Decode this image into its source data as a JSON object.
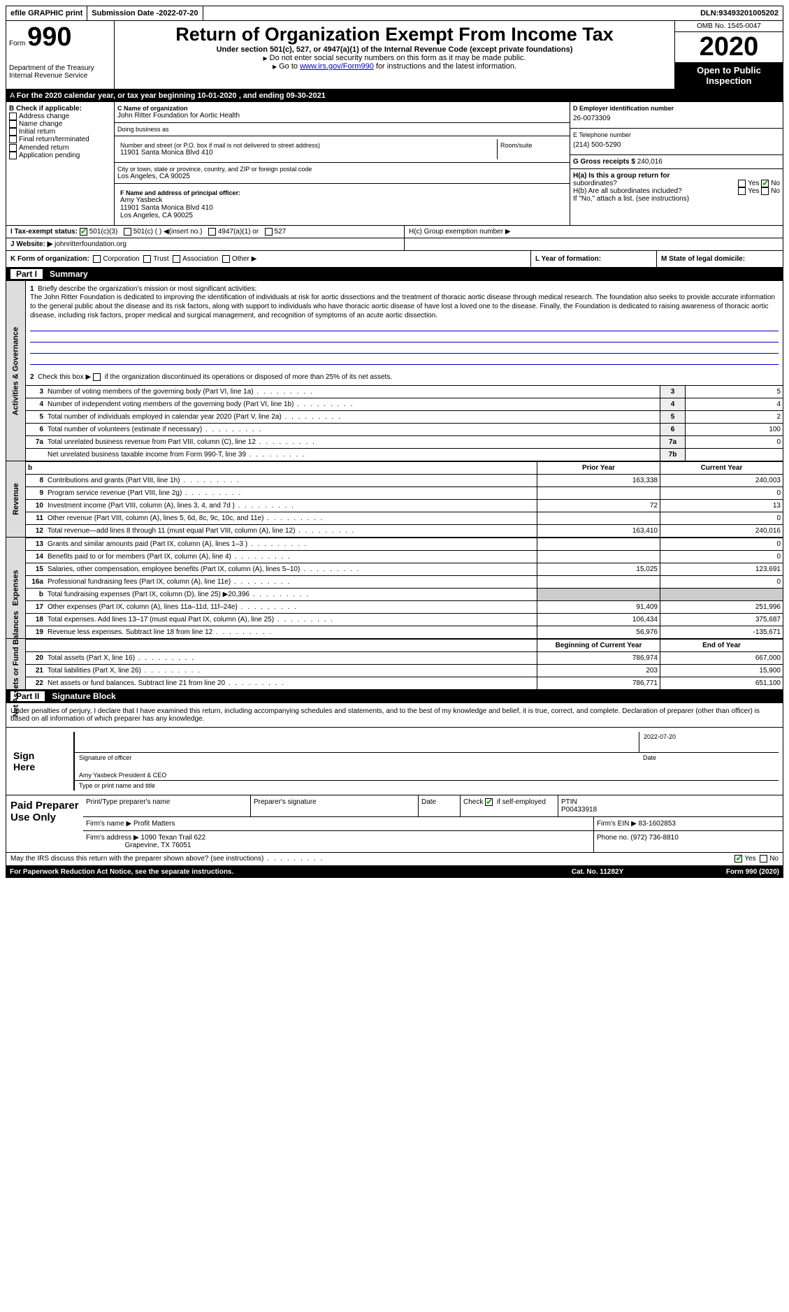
{
  "topbar": {
    "efile": "efile GRAPHIC print",
    "subdate_label": "Submission Date - ",
    "subdate": "2022-07-20",
    "dln_label": "DLN: ",
    "dln": "93493201005202"
  },
  "header": {
    "form_label": "Form",
    "form_num": "990",
    "dept": "Department of the Treasury",
    "irs": "Internal Revenue Service",
    "title": "Return of Organization Exempt From Income Tax",
    "sub": "Under section 501(c), 527, or 4947(a)(1) of the Internal Revenue Code (except private foundations)",
    "note1": "Do not enter social security numbers on this form as it may be made public.",
    "note2_pre": "Go to ",
    "note2_link": "www.irs.gov/Form990",
    "note2_post": " for instructions and the latest information.",
    "omb": "OMB No. 1545-0047",
    "year": "2020",
    "open_pub": "Open to Public Inspection"
  },
  "tax_year": "For the 2020 calendar year, or tax year beginning 10-01-2020    , and ending 09-30-2021",
  "b": {
    "label": "B Check if applicable:",
    "items": [
      "Address change",
      "Name change",
      "Initial return",
      "Final return/terminated",
      "Amended return",
      "Application pending"
    ]
  },
  "c": {
    "name_label": "C Name of organization",
    "name": "John Ritter Foundation for Aortic Health",
    "dba_label": "Doing business as",
    "addr_label": "Number and street (or P.O. box if mail is not delivered to street address)",
    "room_label": "Room/suite",
    "addr": "11901 Santa Monica Blvd 410",
    "city_label": "City or town, state or province, country, and ZIP or foreign postal code",
    "city": "Los Angeles, CA  90025"
  },
  "d": {
    "label": "D Employer identification number",
    "val": "26-0073309"
  },
  "e": {
    "label": "E Telephone number",
    "val": "(214) 500-5290"
  },
  "g": {
    "label": "G Gross receipts $ ",
    "val": "240,016"
  },
  "f": {
    "label": "F  Name and address of principal officer:",
    "name": "Amy Yasbeck",
    "addr": "11901 Santa Monica Blvd 410",
    "city": "Los Angeles, CA  90025"
  },
  "h": {
    "a_label": "H(a)  Is this a group return for",
    "a_sub": "subordinates?",
    "b_label": "H(b)  Are all subordinates included?",
    "b_note": "If \"No,\" attach a list. (see instructions)",
    "c_label": "H(c)  Group exemption number ▶",
    "yes": "Yes",
    "no": "No"
  },
  "i": {
    "label": "I    Tax-exempt status:",
    "opts": [
      "501(c)(3)",
      "501(c) (  )",
      "(insert no.)",
      "4947(a)(1) or",
      "527"
    ]
  },
  "j": {
    "label": "J   Website: ▶",
    "val": "johnritterfoundation.org"
  },
  "k": {
    "label": "K Form of organization:",
    "opts": [
      "Corporation",
      "Trust",
      "Association",
      "Other ▶"
    ]
  },
  "l": {
    "label": "L Year of formation:"
  },
  "m": {
    "label": "M State of legal domicile:"
  },
  "part1": {
    "num": "Part I",
    "title": "Summary",
    "side_act": "Activities & Governance",
    "side_rev": "Revenue",
    "side_exp": "Expenses",
    "side_net": "Net Assets or Fund Balances",
    "l1_label": "Briefly describe the organization's mission or most significant activities:",
    "l1_text": "The John Ritter Foundation is dedicated to improving the identification of individuals at risk for aortic dissections and the treatment of thoracic aortic disease through medical research. The foundation also seeks to provide accurate information to the general public about the disease and its risk factors, along with support to individuals who have thoracic aortic disease of have lost a loved one to the disease. Finally, the Foundation is dedicated to raising awareness of thoracic aortic disease, including risk factors, proper medical and surgical management, and recognition of symptoms of an acute aortic dissection.",
    "l2": "Check this box ▶      if the organization discontinued its operations or disposed of more than 25% of its net assets.",
    "lines_gov": [
      {
        "n": "3",
        "d": "Number of voting members of the governing body (Part VI, line 1a)",
        "nb": "3",
        "v": "5"
      },
      {
        "n": "4",
        "d": "Number of independent voting members of the governing body (Part VI, line 1b)",
        "nb": "4",
        "v": "4"
      },
      {
        "n": "5",
        "d": "Total number of individuals employed in calendar year 2020 (Part V, line 2a)",
        "nb": "5",
        "v": "2"
      },
      {
        "n": "6",
        "d": "Total number of volunteers (estimate if necessary)",
        "nb": "6",
        "v": "100"
      },
      {
        "n": "7a",
        "d": "Total unrelated business revenue from Part VIII, column (C), line 12",
        "nb": "7a",
        "v": "0"
      },
      {
        "n": "",
        "d": "Net unrelated business taxable income from Form 990-T, line 39",
        "nb": "7b",
        "v": ""
      }
    ],
    "hdr_b": "b",
    "hdr_py": "Prior Year",
    "hdr_cy": "Current Year",
    "lines_rev": [
      {
        "n": "8",
        "d": "Contributions and grants (Part VIII, line 1h)",
        "py": "163,338",
        "cy": "240,003"
      },
      {
        "n": "9",
        "d": "Program service revenue (Part VIII, line 2g)",
        "py": "",
        "cy": "0"
      },
      {
        "n": "10",
        "d": "Investment income (Part VIII, column (A), lines 3, 4, and 7d )",
        "py": "72",
        "cy": "13"
      },
      {
        "n": "11",
        "d": "Other revenue (Part VIII, column (A), lines 5, 6d, 8c, 9c, 10c, and 11e)",
        "py": "",
        "cy": "0"
      },
      {
        "n": "12",
        "d": "Total revenue—add lines 8 through 11 (must equal Part VIII, column (A), line 12)",
        "py": "163,410",
        "cy": "240,016"
      }
    ],
    "lines_exp": [
      {
        "n": "13",
        "d": "Grants and similar amounts paid (Part IX, column (A), lines 1–3 )",
        "py": "",
        "cy": "0"
      },
      {
        "n": "14",
        "d": "Benefits paid to or for members (Part IX, column (A), line 4)",
        "py": "",
        "cy": "0"
      },
      {
        "n": "15",
        "d": "Salaries, other compensation, employee benefits (Part IX, column (A), lines 5–10)",
        "py": "15,025",
        "cy": "123,691"
      },
      {
        "n": "16a",
        "d": "Professional fundraising fees (Part IX, column (A), line 11e)",
        "py": "",
        "cy": "0"
      },
      {
        "n": "b",
        "d": "Total fundraising expenses (Part IX, column (D), line 25) ▶20,396",
        "py": "grey",
        "cy": "grey"
      },
      {
        "n": "17",
        "d": "Other expenses (Part IX, column (A), lines 11a–11d, 11f–24e)",
        "py": "91,409",
        "cy": "251,996"
      },
      {
        "n": "18",
        "d": "Total expenses. Add lines 13–17 (must equal Part IX, column (A), line 25)",
        "py": "106,434",
        "cy": "375,687"
      },
      {
        "n": "19",
        "d": "Revenue less expenses. Subtract line 18 from line 12",
        "py": "56,976",
        "cy": "-135,671"
      }
    ],
    "hdr_boy": "Beginning of Current Year",
    "hdr_eoy": "End of Year",
    "lines_net": [
      {
        "n": "20",
        "d": "Total assets (Part X, line 16)",
        "py": "786,974",
        "cy": "667,000"
      },
      {
        "n": "21",
        "d": "Total liabilities (Part X, line 26)",
        "py": "203",
        "cy": "15,900"
      },
      {
        "n": "22",
        "d": "Net assets or fund balances. Subtract line 21 from line 20",
        "py": "786,771",
        "cy": "651,100"
      }
    ]
  },
  "part2": {
    "num": "Part II",
    "title": "Signature Block",
    "decl": "Under penalties of perjury, I declare that I have examined this return, including accompanying schedules and statements, and to the best of my knowledge and belief, it is true, correct, and complete. Declaration of preparer (other than officer) is based on all information of which preparer has any knowledge.",
    "sign_here": "Sign Here",
    "sig_officer": "Signature of officer",
    "sig_date": "Date",
    "sig_date_val": "2022-07-20",
    "officer": "Amy Yasbeck  President & CEO",
    "type_name": "Type or print name and title",
    "paid": "Paid Preparer Use Only",
    "prep_name_label": "Print/Type preparer's name",
    "prep_sig_label": "Preparer's signature",
    "date_label": "Date",
    "check_se": "Check       if self-employed",
    "ptin_label": "PTIN",
    "ptin": "P00433918",
    "firm_name_label": "Firm's name    ▶",
    "firm_name": "Profit Matters",
    "firm_ein_label": "Firm's EIN ▶",
    "firm_ein": "83-1602853",
    "firm_addr_label": "Firm's address ▶",
    "firm_addr": "1090 Texan Trail 622",
    "firm_city": "Grapevine, TX  76051",
    "phone_label": "Phone no.",
    "phone": "(972) 736-8810",
    "discuss": "May the IRS discuss this return with the preparer shown above? (see instructions)",
    "yes": "Yes",
    "no": "No"
  },
  "footer": {
    "pra": "For Paperwork Reduction Act Notice, see the separate instructions.",
    "cat": "Cat. No. 11282Y",
    "form": "Form 990 (2020)"
  }
}
